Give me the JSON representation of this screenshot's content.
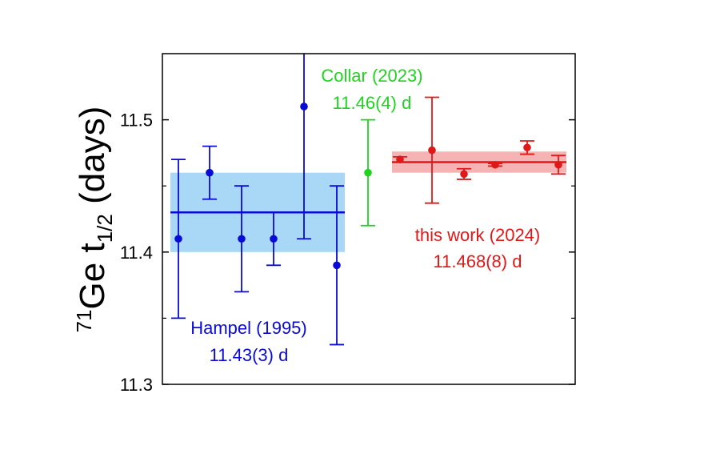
{
  "chart_data": {
    "type": "scatter",
    "title": "",
    "xlabel": "",
    "ylabel": {
      "superscript": "71",
      "main": "Ge t",
      "subscript": "1/2",
      "suffix": " (days)"
    },
    "ylim": [
      11.3,
      11.55
    ],
    "yticks": [
      "11.3",
      "11.4",
      "11.5"
    ],
    "grid": false,
    "series": [
      {
        "name": "Hampel (1995)",
        "color": "#0a0ad6",
        "band_color": "#a9d8f6",
        "mean": 11.43,
        "band": [
          11.4,
          11.46
        ],
        "points": [
          {
            "y": 11.41,
            "ylow": 11.35,
            "yhigh": 11.47
          },
          {
            "y": 11.46,
            "ylow": 11.44,
            "yhigh": 11.48
          },
          {
            "y": 11.41,
            "ylow": 11.37,
            "yhigh": 11.45
          },
          {
            "y": 11.41,
            "ylow": 11.39,
            "yhigh": 11.43
          },
          {
            "y": 11.51,
            "ylow": 11.41,
            "yhigh": 11.61
          },
          {
            "y": 11.39,
            "ylow": 11.33,
            "yhigh": 11.45
          }
        ]
      },
      {
        "name": "Collar (2023)",
        "color": "#1ed41e",
        "points": [
          {
            "y": 11.46,
            "ylow": 11.42,
            "yhigh": 11.5
          }
        ]
      },
      {
        "name": "this work (2024)",
        "color": "#e01818",
        "band_color": "#f5b3b3",
        "mean": 11.468,
        "band": [
          11.46,
          11.476
        ],
        "points": [
          {
            "y": 11.47,
            "ylow": 11.468,
            "yhigh": 11.472
          },
          {
            "y": 11.477,
            "ylow": 11.437,
            "yhigh": 11.517
          },
          {
            "y": 11.459,
            "ylow": 11.455,
            "yhigh": 11.463
          },
          {
            "y": 11.466,
            "ylow": 11.465,
            "yhigh": 11.467
          },
          {
            "y": 11.479,
            "ylow": 11.474,
            "yhigh": 11.484
          },
          {
            "y": 11.466,
            "ylow": 11.459,
            "yhigh": 11.473
          }
        ]
      }
    ],
    "annotations": {
      "hampel": [
        "Hampel (1995)",
        "11.43(3) d"
      ],
      "collar": [
        "Collar (2023)",
        "11.46(4) d"
      ],
      "thiswork": [
        "this work (2024)",
        "11.468(8) d"
      ]
    }
  }
}
